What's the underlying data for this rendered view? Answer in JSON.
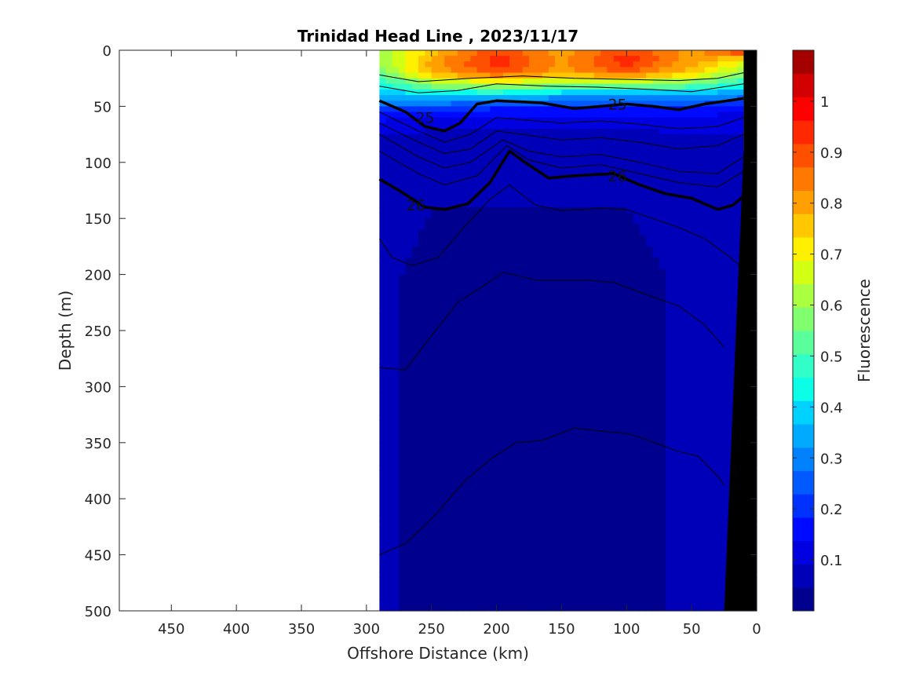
{
  "chart_data": {
    "type": "heatmap",
    "subtype": "filled-contour-section",
    "title": "Trinidad Head Line , 2023/11/17",
    "xlabel": "Offshore Distance (km)",
    "ylabel": "Depth (m)",
    "colorbar_label": "Fluorescence",
    "xlim": [
      490,
      0
    ],
    "ylim": [
      0,
      500
    ],
    "x_reversed": true,
    "y_reversed": true,
    "x_ticks": [
      450,
      400,
      350,
      300,
      250,
      200,
      150,
      100,
      50,
      0
    ],
    "y_ticks": [
      0,
      50,
      100,
      150,
      200,
      250,
      300,
      350,
      400,
      450,
      500
    ],
    "data_extent_km": [
      290,
      10
    ],
    "colorbar_ticks": [
      0.1,
      0.2,
      0.3,
      0.4,
      0.5,
      0.6,
      0.7,
      0.8,
      0.9,
      1
    ],
    "colorbar_range": [
      0,
      1.1
    ],
    "colorbar_levels": [
      "#00008f",
      "#0000b8",
      "#0000e1",
      "#000aff",
      "#0032ff",
      "#005aff",
      "#0082ff",
      "#00aaff",
      "#00d2ff",
      "#0affe6",
      "#32ffc8",
      "#5aff9b",
      "#82ff6e",
      "#aaff41",
      "#d2ff14",
      "#fff000",
      "#ffc800",
      "#ffa000",
      "#ff7800",
      "#ff5000",
      "#ff2800",
      "#ff0000",
      "#d20000",
      "#a50000"
    ],
    "fluorescence_profiles": [
      {
        "x": 290,
        "depths": [
          0,
          10,
          20,
          30,
          40,
          50,
          60,
          80,
          100,
          200,
          500
        ],
        "values": [
          0.6,
          0.6,
          0.55,
          0.45,
          0.35,
          0.25,
          0.15,
          0.08,
          0.06,
          0.05,
          0.05
        ]
      },
      {
        "x": 250,
        "depths": [
          0,
          10,
          20,
          30,
          40,
          50,
          60,
          80,
          100,
          200,
          500
        ],
        "values": [
          0.75,
          0.8,
          0.78,
          0.6,
          0.4,
          0.25,
          0.12,
          0.07,
          0.05,
          0.04,
          0.04
        ]
      },
      {
        "x": 200,
        "depths": [
          0,
          10,
          20,
          30,
          40,
          50,
          60,
          80,
          100,
          200,
          500
        ],
        "values": [
          0.9,
          0.95,
          0.9,
          0.65,
          0.4,
          0.2,
          0.12,
          0.07,
          0.05,
          0.04,
          0.04
        ]
      },
      {
        "x": 150,
        "depths": [
          0,
          10,
          20,
          30,
          40,
          50,
          60,
          80,
          100,
          200,
          500
        ],
        "values": [
          0.8,
          0.82,
          0.8,
          0.6,
          0.35,
          0.2,
          0.12,
          0.07,
          0.05,
          0.04,
          0.04
        ]
      },
      {
        "x": 100,
        "depths": [
          0,
          10,
          20,
          30,
          40,
          50,
          60,
          80,
          100,
          200,
          500
        ],
        "values": [
          0.9,
          0.95,
          0.88,
          0.6,
          0.35,
          0.2,
          0.12,
          0.07,
          0.05,
          0.04,
          0.04
        ]
      },
      {
        "x": 50,
        "depths": [
          0,
          10,
          20,
          30,
          40,
          50,
          60,
          80,
          100,
          200,
          500
        ],
        "values": [
          0.8,
          0.8,
          0.75,
          0.55,
          0.35,
          0.2,
          0.12,
          0.08,
          0.06,
          0.05,
          0.05
        ]
      },
      {
        "x": 10,
        "depths": [
          0,
          10,
          20,
          30,
          40,
          50,
          60,
          80,
          100,
          200,
          500
        ],
        "values": [
          0.95,
          0.7,
          0.6,
          0.45,
          0.3,
          0.18,
          0.12,
          0.08,
          0.06,
          0.05,
          0.05
        ]
      }
    ],
    "density_contours": [
      {
        "level": "25",
        "bold": true,
        "points": [
          [
            290,
            45
          ],
          [
            270,
            55
          ],
          [
            255,
            68
          ],
          [
            240,
            72
          ],
          [
            228,
            65
          ],
          [
            215,
            48
          ],
          [
            200,
            45
          ],
          [
            180,
            46
          ],
          [
            165,
            47
          ],
          [
            140,
            52
          ],
          [
            120,
            50
          ],
          [
            100,
            48
          ],
          [
            80,
            50
          ],
          [
            60,
            53
          ],
          [
            40,
            48
          ],
          [
            10,
            43
          ]
        ],
        "label_positions": [
          [
            255,
            60
          ],
          [
            107,
            48
          ]
        ]
      },
      {
        "level": "26",
        "bold": true,
        "points": [
          [
            290,
            115
          ],
          [
            275,
            125
          ],
          [
            255,
            140
          ],
          [
            240,
            142
          ],
          [
            222,
            137
          ],
          [
            205,
            118
          ],
          [
            190,
            90
          ],
          [
            178,
            100
          ],
          [
            160,
            114
          ],
          [
            140,
            112
          ],
          [
            110,
            110
          ],
          [
            90,
            120
          ],
          [
            70,
            128
          ],
          [
            50,
            132
          ],
          [
            30,
            142
          ],
          [
            18,
            138
          ],
          [
            10,
            130
          ]
        ],
        "label_positions": [
          [
            262,
            138
          ],
          [
            107,
            112
          ]
        ]
      },
      {
        "level": "",
        "bold": false,
        "points": [
          [
            290,
            22
          ],
          [
            260,
            28
          ],
          [
            220,
            25
          ],
          [
            180,
            23
          ],
          [
            140,
            25
          ],
          [
            100,
            26
          ],
          [
            60,
            27
          ],
          [
            30,
            25
          ],
          [
            10,
            20
          ]
        ]
      },
      {
        "level": "",
        "bold": false,
        "points": [
          [
            290,
            32
          ],
          [
            260,
            38
          ],
          [
            230,
            36
          ],
          [
            200,
            30
          ],
          [
            160,
            32
          ],
          [
            120,
            33
          ],
          [
            80,
            35
          ],
          [
            50,
            37
          ],
          [
            10,
            30
          ]
        ]
      },
      {
        "level": "",
        "bold": false,
        "points": [
          [
            290,
            55
          ],
          [
            260,
            72
          ],
          [
            240,
            82
          ],
          [
            220,
            75
          ],
          [
            200,
            60
          ],
          [
            180,
            62
          ],
          [
            150,
            65
          ],
          [
            120,
            63
          ],
          [
            90,
            66
          ],
          [
            60,
            70
          ],
          [
            30,
            68
          ],
          [
            10,
            60
          ]
        ]
      },
      {
        "level": "",
        "bold": false,
        "points": [
          [
            290,
            65
          ],
          [
            260,
            82
          ],
          [
            240,
            92
          ],
          [
            220,
            88
          ],
          [
            200,
            72
          ],
          [
            180,
            75
          ],
          [
            150,
            80
          ],
          [
            120,
            78
          ],
          [
            90,
            82
          ],
          [
            60,
            88
          ],
          [
            30,
            85
          ],
          [
            10,
            75
          ]
        ]
      },
      {
        "level": "",
        "bold": false,
        "points": [
          [
            290,
            75
          ],
          [
            260,
            95
          ],
          [
            240,
            105
          ],
          [
            220,
            100
          ],
          [
            195,
            80
          ],
          [
            175,
            90
          ],
          [
            150,
            95
          ],
          [
            120,
            93
          ],
          [
            90,
            100
          ],
          [
            60,
            108
          ],
          [
            30,
            110
          ],
          [
            10,
            95
          ]
        ]
      },
      {
        "level": "",
        "bold": false,
        "points": [
          [
            290,
            90
          ],
          [
            260,
            110
          ],
          [
            240,
            120
          ],
          [
            215,
            112
          ],
          [
            192,
            85
          ],
          [
            175,
            98
          ],
          [
            150,
            105
          ],
          [
            120,
            102
          ],
          [
            90,
            110
          ],
          [
            60,
            118
          ],
          [
            30,
            122
          ],
          [
            10,
            108
          ]
        ]
      },
      {
        "level": "",
        "bold": false,
        "points": [
          [
            290,
            168
          ],
          [
            280,
            185
          ],
          [
            265,
            192
          ],
          [
            245,
            185
          ],
          [
            225,
            158
          ],
          [
            205,
            133
          ],
          [
            190,
            120
          ],
          [
            170,
            138
          ],
          [
            150,
            143
          ],
          [
            120,
            141
          ],
          [
            100,
            142
          ],
          [
            80,
            150
          ],
          [
            60,
            158
          ],
          [
            40,
            168
          ],
          [
            20,
            185
          ],
          [
            10,
            195
          ]
        ]
      },
      {
        "level": "",
        "bold": false,
        "points": [
          [
            290,
            283
          ],
          [
            270,
            285
          ],
          [
            255,
            262
          ],
          [
            240,
            240
          ],
          [
            230,
            225
          ],
          [
            210,
            210
          ],
          [
            195,
            198
          ],
          [
            170,
            205
          ],
          [
            130,
            205
          ],
          [
            110,
            207
          ],
          [
            80,
            220
          ],
          [
            60,
            228
          ],
          [
            40,
            245
          ],
          [
            25,
            265
          ]
        ]
      },
      {
        "level": "",
        "bold": false,
        "points": [
          [
            290,
            450
          ],
          [
            270,
            440
          ],
          [
            250,
            418
          ],
          [
            225,
            385
          ],
          [
            205,
            365
          ],
          [
            185,
            350
          ],
          [
            165,
            348
          ],
          [
            140,
            337
          ],
          [
            100,
            342
          ],
          [
            90,
            345
          ],
          [
            60,
            358
          ],
          [
            45,
            362
          ],
          [
            30,
            380
          ],
          [
            25,
            388
          ]
        ]
      }
    ],
    "bathymetry_polygon": [
      [
        10,
        0
      ],
      [
        3,
        0
      ],
      [
        0,
        0
      ],
      [
        0,
        500
      ],
      [
        25,
        500
      ],
      [
        10,
        90
      ]
    ],
    "fill_gap_polygon": [
      [
        10,
        0
      ],
      [
        3,
        0
      ],
      [
        10,
        90
      ]
    ]
  }
}
